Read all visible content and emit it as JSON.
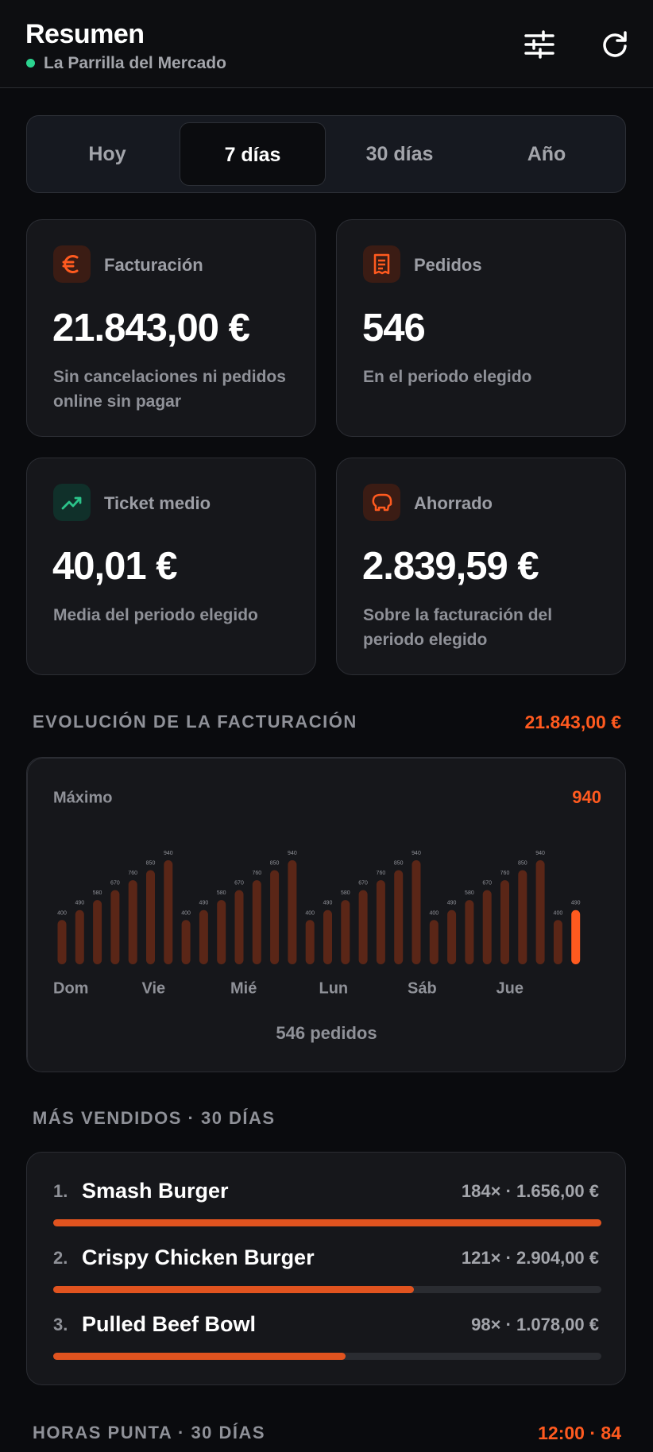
{
  "header": {
    "title": "Resumen",
    "subtitle": "La Parrilla del Mercado"
  },
  "tabs": {
    "items": [
      "Hoy",
      "7 días",
      "30 días",
      "Año"
    ],
    "active_index": 1
  },
  "kpis": [
    {
      "title": "Facturación",
      "value": "21.843,00 €",
      "note": "Sin cancelaciones ni pedidos online sin pagar"
    },
    {
      "title": "Pedidos",
      "value": "546",
      "note": "En el periodo elegido"
    },
    {
      "title": "Ticket medio",
      "value": "40,01 €",
      "note": "Media del periodo elegido"
    },
    {
      "title": "Ahorrado",
      "value": "2.839,59 €",
      "note": "Sobre la facturación del periodo elegido"
    }
  ],
  "revenue_section": {
    "heading": "EVOLUCIÓN DE LA FACTURACIÓN",
    "total": "21.843,00 €"
  },
  "chart_data": {
    "type": "bar",
    "max_label": "Máximo",
    "max": 940,
    "footer": "546 pedidos",
    "categories": [
      "Dom",
      null,
      null,
      null,
      null,
      "Vie",
      null,
      null,
      null,
      null,
      "Mié",
      null,
      null,
      null,
      null,
      "Lun",
      null,
      null,
      null,
      null,
      "Sáb",
      null,
      null,
      null,
      null,
      "Jue",
      null,
      null,
      null,
      null
    ],
    "values": [
      400,
      490,
      580,
      670,
      760,
      850,
      940,
      400,
      490,
      580,
      670,
      760,
      850,
      940,
      400,
      490,
      580,
      670,
      760,
      850,
      940,
      400,
      490,
      580,
      670,
      760,
      850,
      940,
      400,
      490
    ],
    "colors": [
      "#5a2617",
      "#5a2617",
      "#5a2617",
      "#5a2617",
      "#5a2617",
      "#5a2617",
      "#5a2617",
      "#5a2617",
      "#5a2617",
      "#5a2617",
      "#5a2617",
      "#5a2617",
      "#5a2617",
      "#5a2617",
      "#5a2617",
      "#5a2617",
      "#5a2617",
      "#5a2617",
      "#5a2617",
      "#5a2617",
      "#5a2617",
      "#5a2617",
      "#5a2617",
      "#5a2617",
      "#5a2617",
      "#5a2617",
      "#5a2617",
      "#5a2617",
      "#5a2617",
      "#ff5a1f"
    ]
  },
  "top_section": {
    "heading": "MÁS VENDIDOS · 30 DÍAS"
  },
  "top_products": [
    {
      "rank": "1.",
      "name": "Smash Burger",
      "count": 184,
      "stats": "184× · 1.656,00 €"
    },
    {
      "rank": "2.",
      "name": "Crispy Chicken Burger",
      "count": 121,
      "stats": "121× · 2.904,00 €"
    },
    {
      "rank": "3.",
      "name": "Pulled Beef Bowl",
      "count": 98,
      "stats": "98× · 1.078,00 €"
    }
  ],
  "peak_section": {
    "heading": "HORAS PUNTA · 30 DÍAS",
    "value": "12:00 · 84"
  }
}
